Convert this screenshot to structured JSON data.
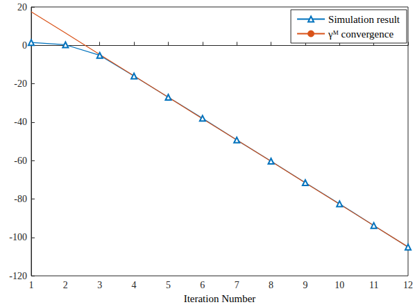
{
  "chart_data": {
    "type": "line",
    "x_label": "Iteration Number",
    "x": [
      1,
      2,
      3,
      4,
      5,
      6,
      7,
      8,
      9,
      10,
      11,
      12
    ],
    "series": [
      {
        "name": "Simulation result",
        "color": "#0072bd",
        "marker": "triangle",
        "values": [
          1.5,
          0.3,
          -5.2,
          -16,
          -27,
          -38,
          -49.3,
          -60.3,
          -71.5,
          -82.5,
          -93.8,
          -105
        ]
      },
      {
        "name": "γᴹ convergence",
        "color": "#d95319",
        "marker": "none",
        "values": [
          17.5,
          6.4,
          -4.8,
          -15.9,
          -27.0,
          -38.2,
          -49.3,
          -60.4,
          -71.6,
          -82.7,
          -93.8,
          -105.0
        ]
      }
    ],
    "xlim": [
      1,
      12
    ],
    "xticks": [
      1,
      2,
      3,
      4,
      5,
      6,
      7,
      8,
      9,
      10,
      11,
      12
    ],
    "ylim": [
      -120,
      20
    ],
    "yticks": [
      -120,
      -100,
      -80,
      -60,
      -40,
      -20,
      0,
      20
    ],
    "grid": false,
    "legend": "top-right"
  }
}
